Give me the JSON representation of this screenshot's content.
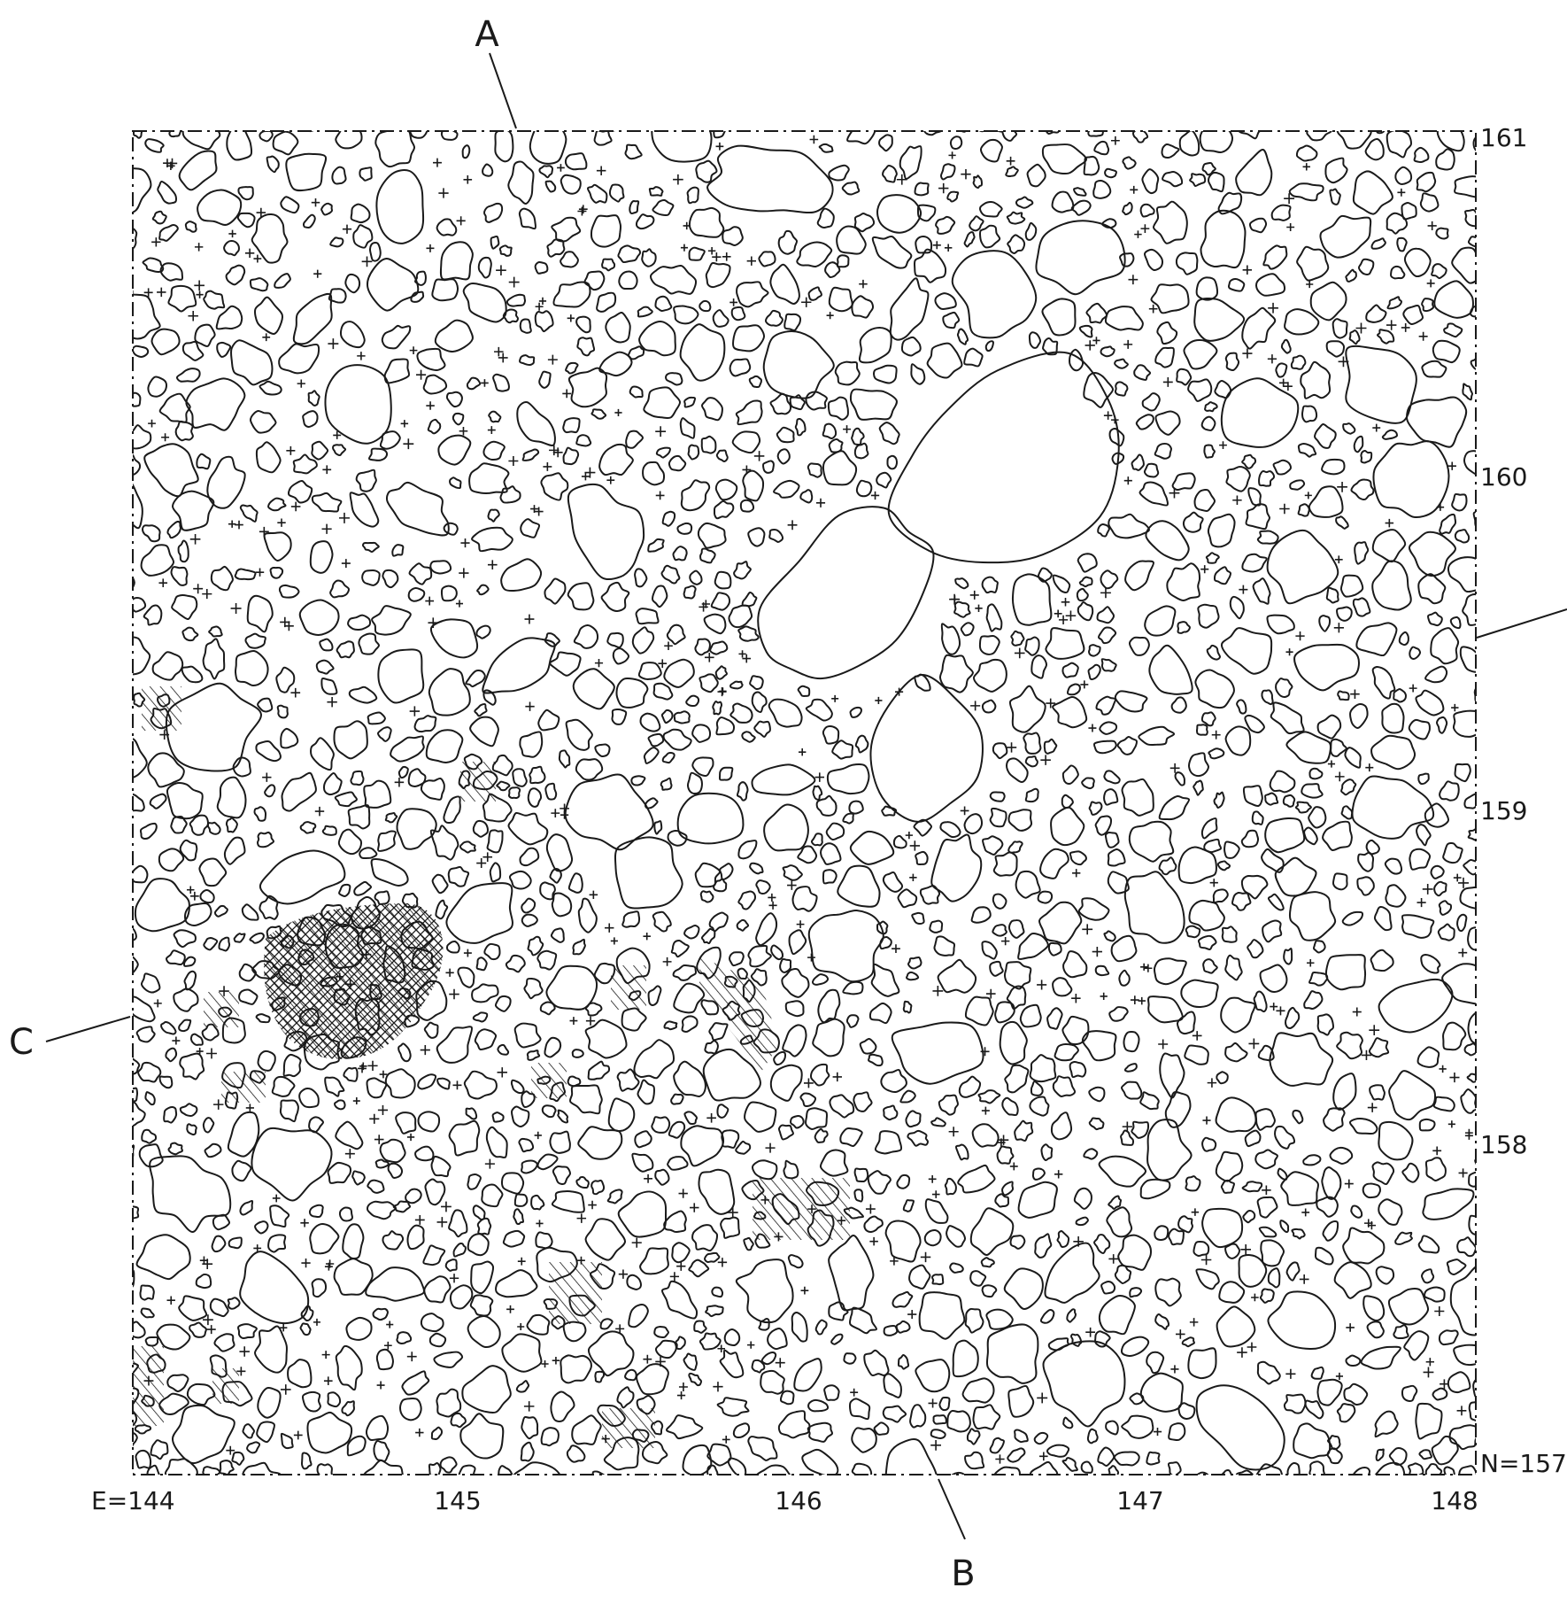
{
  "plan": {
    "section_labels": {
      "a": "A",
      "b": "B",
      "c": "C"
    },
    "easting_labels": [
      "E=144",
      "145",
      "146",
      "147",
      "148"
    ],
    "northing_labels": [
      "N=157",
      "158",
      "159",
      "160",
      "161"
    ]
  },
  "style": {
    "line_color": "#1a1a1a",
    "paper_color": "#ffffff"
  }
}
